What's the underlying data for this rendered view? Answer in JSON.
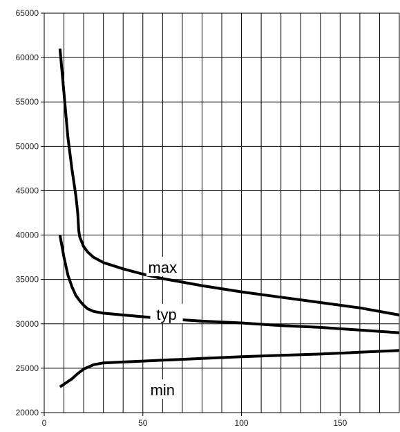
{
  "chart_data": {
    "type": "line",
    "title": "",
    "xlabel": "",
    "ylabel": "",
    "xlim": [
      0,
      180
    ],
    "ylim": [
      20000,
      65000
    ],
    "x_ticks": [
      0,
      50,
      100,
      150
    ],
    "y_ticks": [
      20000,
      25000,
      30000,
      35000,
      40000,
      45000,
      50000,
      55000,
      60000,
      65000
    ],
    "x_tick_labels": [
      "0",
      "50",
      "100",
      "150"
    ],
    "y_tick_labels": [
      "20000",
      "25000",
      "30000",
      "35000",
      "40000",
      "45000",
      "50000",
      "55000",
      "60000",
      "65000"
    ],
    "grid": true,
    "series": [
      {
        "name": "max",
        "x": [
          8,
          10,
          12,
          14,
          16,
          17,
          17.5,
          18,
          20,
          22,
          25,
          30,
          40,
          50,
          60,
          70,
          80,
          100,
          120,
          140,
          160,
          180
        ],
        "y": [
          61000,
          56000,
          51000,
          47500,
          44500,
          42500,
          40500,
          39800,
          38700,
          38100,
          37500,
          36900,
          36200,
          35600,
          35100,
          34700,
          34300,
          33600,
          33000,
          32400,
          31800,
          31000
        ]
      },
      {
        "name": "typ",
        "x": [
          8,
          10,
          12,
          14,
          16,
          18,
          20,
          22,
          25,
          30,
          40,
          50,
          60,
          70,
          80,
          100,
          120,
          140,
          160,
          180
        ],
        "y": [
          40000,
          37500,
          35500,
          34200,
          33200,
          32600,
          32100,
          31700,
          31400,
          31200,
          31000,
          30800,
          30600,
          30450,
          30300,
          30100,
          29800,
          29600,
          29300,
          29000
        ]
      },
      {
        "name": "min",
        "x": [
          8,
          10,
          14,
          17,
          20,
          25,
          30,
          40,
          50,
          60,
          80,
          100,
          120,
          140,
          160,
          180
        ],
        "y": [
          22900,
          23200,
          23800,
          24400,
          24900,
          25400,
          25600,
          25700,
          25800,
          25900,
          26100,
          26300,
          26450,
          26600,
          26800,
          27000
        ]
      }
    ],
    "series_labels": [
      {
        "text": "max",
        "x": 60,
        "y": 36300
      },
      {
        "text": "typ",
        "x": 62,
        "y": 31000
      },
      {
        "text": "min",
        "x": 60,
        "y": 22500
      }
    ]
  }
}
